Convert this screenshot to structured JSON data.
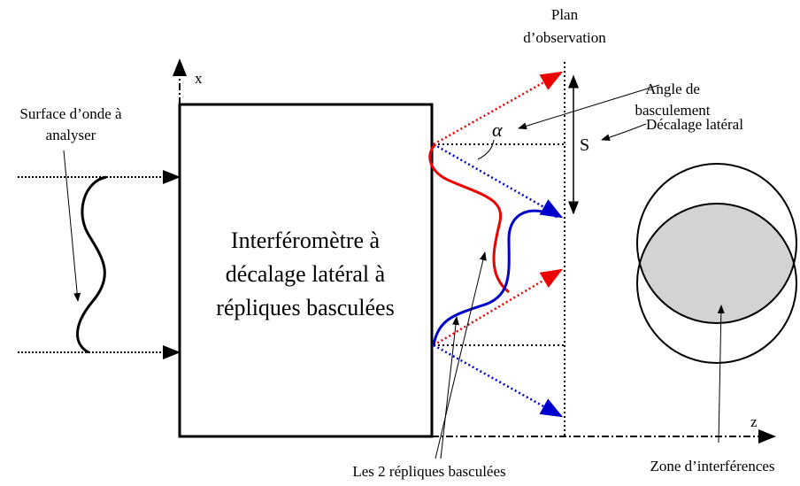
{
  "plane_label": {
    "lines": [
      "Plan",
      "d’observation"
    ]
  },
  "x_axis_label": "x",
  "z_axis_label": "z",
  "angle_label": {
    "lines": [
      "Angle de",
      "basculement"
    ]
  },
  "wavefront_label": {
    "lines": [
      "Surface d’onde à",
      "analyser"
    ]
  },
  "alpha_symbol": "α",
  "shift_symbol": "S",
  "shift_label": "Décalage latéral",
  "interferometer_label": {
    "lines": [
      "Interféromètre à",
      "décalage latéral à",
      "répliques basculées"
    ]
  },
  "replicas_label": "Les 2 répliques basculées",
  "interference_zone_label": "Zone d’interférences"
}
